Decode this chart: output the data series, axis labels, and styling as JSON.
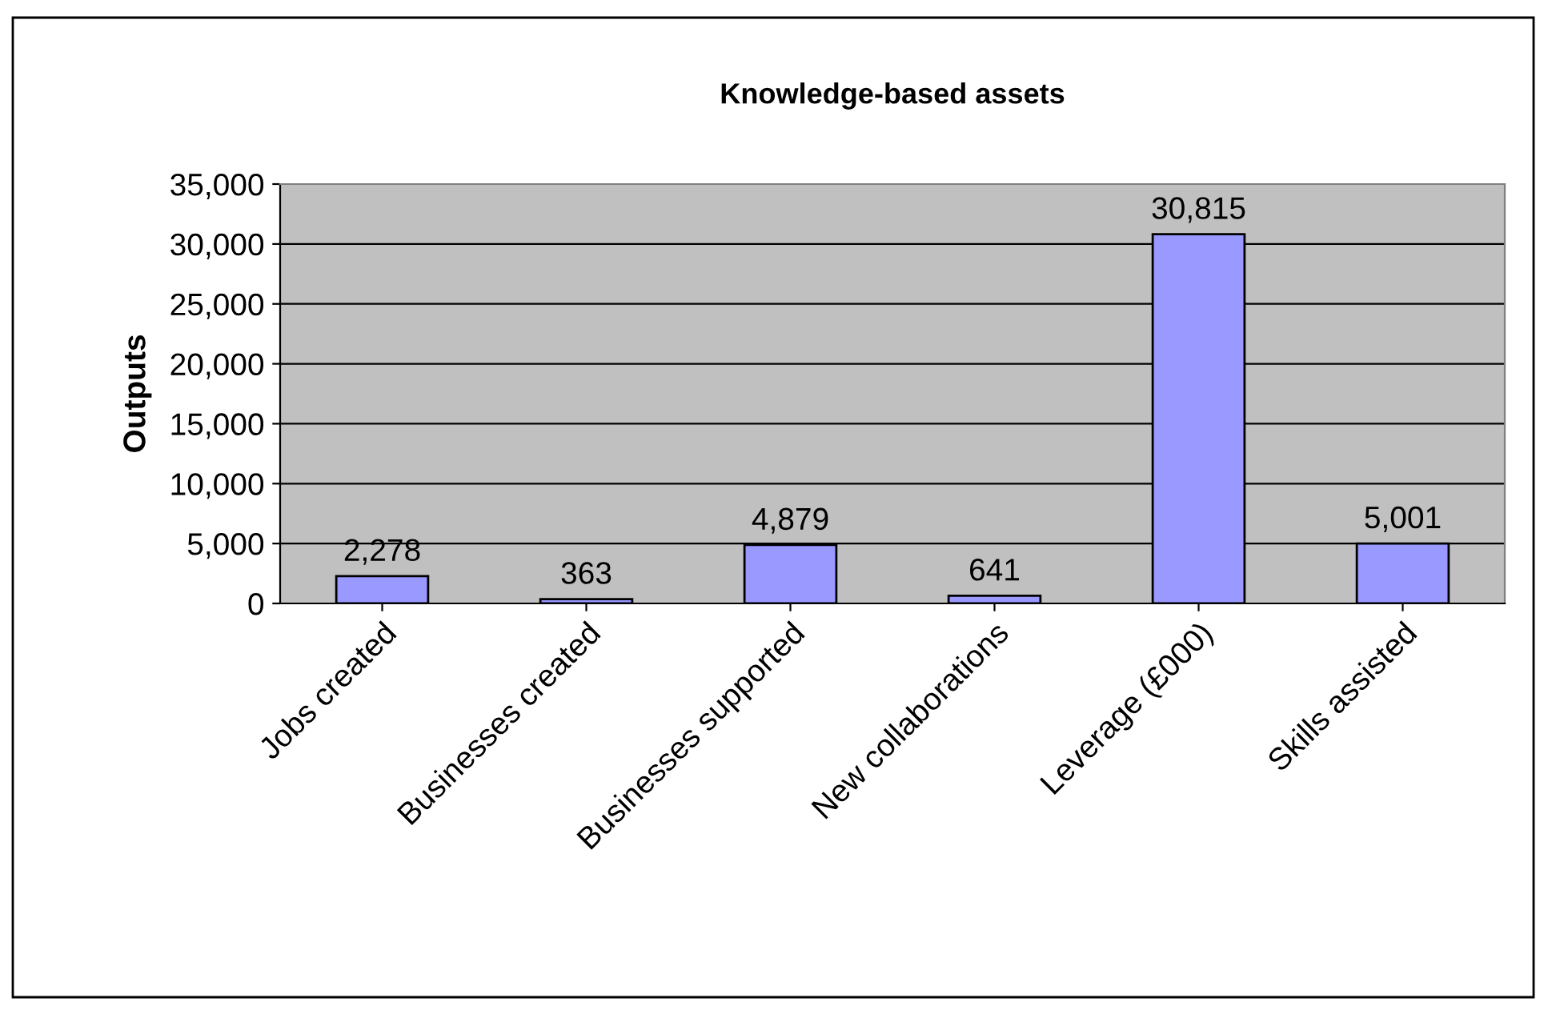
{
  "chart_data": {
    "type": "bar",
    "title": "Knowledge-based assets",
    "ylabel": "Outputs",
    "categories": [
      "Jobs created",
      "Businesses created",
      "Businesses supported",
      "New collaborations",
      "Leverage (£000)",
      "Skills assisted"
    ],
    "values": [
      2278,
      363,
      4879,
      641,
      30815,
      5001
    ],
    "value_labels": [
      "2,278",
      "363",
      "4,879",
      "641",
      "30,815",
      "5,001"
    ],
    "color": "#9999ff",
    "ylim": [
      0,
      35000
    ],
    "yticks": [
      {
        "value": 0,
        "label": "0"
      },
      {
        "value": 5000,
        "label": "5,000"
      },
      {
        "value": 10000,
        "label": "10,000"
      },
      {
        "value": 15000,
        "label": "15,000"
      },
      {
        "value": 20000,
        "label": "20,000"
      },
      {
        "value": 25000,
        "label": "25,000"
      },
      {
        "value": 30000,
        "label": "30,000"
      },
      {
        "value": 35000,
        "label": "35,000"
      }
    ],
    "grid": "y",
    "legend": false
  }
}
